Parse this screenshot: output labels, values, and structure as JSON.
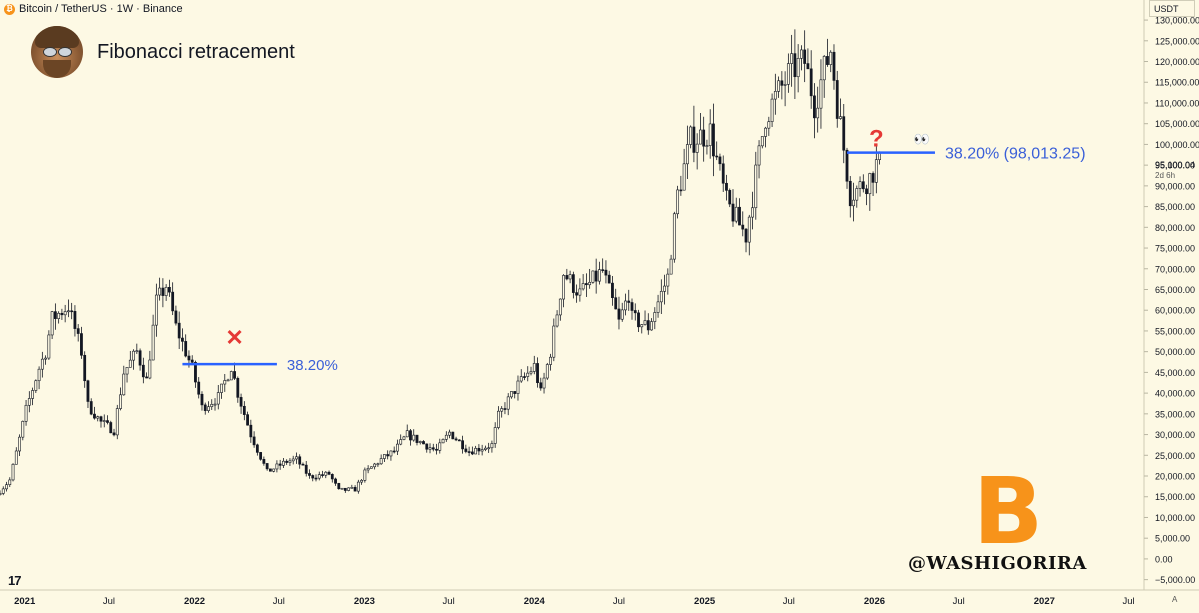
{
  "header": {
    "symbol": "Bitcoin / TetherUS · 1W · Binance",
    "btc_glyph": "₿",
    "currency": "USDT",
    "title": "Fibonacci retracement",
    "avatar": "bearded-man-sunglasses-avatar"
  },
  "annotations": {
    "fib_2022_label": "38.20%",
    "fib_2026_label": "38.20% (98,013.25)",
    "cross_mark": "✕",
    "question_mark": "?",
    "eyes": "👀",
    "price_tag": "95,100.04",
    "countdown": "2d 6h",
    "auto_scale": "A"
  },
  "branding": {
    "tradingview_logo": "17",
    "watermark": "@WASHIGORIRA",
    "bitcoin_logo": "B"
  },
  "colors": {
    "background": "#fdf9e4",
    "candles": "#131722",
    "fib_line": "#2962ff",
    "fib_text": "#3a5fd8",
    "cross": "#e53935",
    "bitcoin_orange": "#f7931a"
  },
  "chart_data": {
    "type": "candlestick",
    "title": "",
    "interval": "1W",
    "x_range": [
      "2020-11-09",
      "2027-08-01"
    ],
    "y_range": [
      -7500,
      130500
    ],
    "y_ticks": [
      -5000,
      0,
      5000,
      10000,
      15000,
      20000,
      25000,
      30000,
      35000,
      40000,
      45000,
      50000,
      55000,
      60000,
      65000,
      70000,
      75000,
      80000,
      85000,
      90000,
      95000,
      100000,
      105000,
      110000,
      115000,
      120000,
      125000,
      130000
    ],
    "y_tick_labels": [
      "−5,000.00",
      "0.00",
      "5,000.00",
      "10,000.00",
      "15,000.00",
      "20,000.00",
      "25,000.00",
      "30,000.00",
      "35,000.00",
      "40,000.00",
      "45,000.00",
      "50,000.00",
      "55,000.00",
      "60,000.00",
      "65,000.00",
      "70,000.00",
      "75,000.00",
      "80,000.00",
      "85,000.00",
      "90,000.00",
      "95,000.00",
      "100,000.00",
      "105,000.00",
      "110,000.00",
      "115,000.00",
      "120,000.00",
      "125,000.00",
      "130,000.00"
    ],
    "x_ticks": [
      {
        "date": "2021-01-01",
        "label": "2021",
        "bold": true
      },
      {
        "date": "2021-07-01",
        "label": "Jul",
        "bold": false
      },
      {
        "date": "2022-01-01",
        "label": "2022",
        "bold": true
      },
      {
        "date": "2022-07-01",
        "label": "Jul",
        "bold": false
      },
      {
        "date": "2023-01-01",
        "label": "2023",
        "bold": true
      },
      {
        "date": "2023-07-01",
        "label": "Jul",
        "bold": false
      },
      {
        "date": "2024-01-01",
        "label": "2024",
        "bold": true
      },
      {
        "date": "2024-07-01",
        "label": "Jul",
        "bold": false
      },
      {
        "date": "2025-01-01",
        "label": "2025",
        "bold": true
      },
      {
        "date": "2025-07-01",
        "label": "Jul",
        "bold": false
      },
      {
        "date": "2026-01-01",
        "label": "2026",
        "bold": true
      },
      {
        "date": "2026-07-01",
        "label": "Jul",
        "bold": false
      },
      {
        "date": "2027-01-01",
        "label": "2027",
        "bold": true
      },
      {
        "date": "2027-07-01",
        "label": "Jul",
        "bold": false
      }
    ],
    "price_anchors": [
      [
        "2020-11-09",
        15500
      ],
      [
        "2020-12-07",
        19000
      ],
      [
        "2020-12-28",
        29000
      ],
      [
        "2021-01-11",
        36000
      ],
      [
        "2021-02-08",
        46000
      ],
      [
        "2021-02-22",
        50000
      ],
      [
        "2021-03-08",
        58000
      ],
      [
        "2021-04-12",
        61000
      ],
      [
        "2021-05-10",
        50000
      ],
      [
        "2021-05-24",
        37000
      ],
      [
        "2021-06-21",
        33000
      ],
      [
        "2021-07-19",
        31000
      ],
      [
        "2021-08-09",
        45000
      ],
      [
        "2021-09-06",
        50000
      ],
      [
        "2021-09-27",
        43000
      ],
      [
        "2021-10-18",
        62000
      ],
      [
        "2021-11-08",
        66000
      ],
      [
        "2021-11-29",
        56000
      ],
      [
        "2022-01-03",
        46000
      ],
      [
        "2022-01-24",
        36500
      ],
      [
        "2022-02-28",
        39000
      ],
      [
        "2022-03-28",
        46500
      ],
      [
        "2022-04-11",
        40000
      ],
      [
        "2022-05-09",
        30000
      ],
      [
        "2022-06-13",
        21000
      ],
      [
        "2022-07-25",
        23500
      ],
      [
        "2022-08-15",
        24000
      ],
      [
        "2022-09-12",
        19800
      ],
      [
        "2022-10-24",
        20500
      ],
      [
        "2022-11-14",
        16500
      ],
      [
        "2022-12-19",
        16800
      ],
      [
        "2023-01-09",
        20800
      ],
      [
        "2023-02-13",
        24000
      ],
      [
        "2023-03-13",
        26000
      ],
      [
        "2023-04-10",
        30000
      ],
      [
        "2023-06-12",
        26000
      ],
      [
        "2023-07-10",
        30500
      ],
      [
        "2023-08-21",
        26000
      ],
      [
        "2023-10-09",
        27500
      ],
      [
        "2023-10-23",
        34500
      ],
      [
        "2023-12-04",
        42000
      ],
      [
        "2024-01-08",
        46500
      ],
      [
        "2024-01-22",
        40000
      ],
      [
        "2024-02-12",
        50000
      ],
      [
        "2024-03-11",
        69000
      ],
      [
        "2024-04-15",
        64000
      ],
      [
        "2024-06-03",
        69500
      ],
      [
        "2024-07-08",
        57000
      ],
      [
        "2024-07-29",
        64000
      ],
      [
        "2024-08-05",
        58000
      ],
      [
        "2024-09-09",
        56000
      ],
      [
        "2024-10-21",
        68000
      ],
      [
        "2024-11-11",
        88000
      ],
      [
        "2024-12-09",
        101000
      ],
      [
        "2025-01-20",
        103000
      ],
      [
        "2025-02-24",
        86000
      ],
      [
        "2025-04-07",
        78000
      ],
      [
        "2025-05-19",
        107000
      ],
      [
        "2025-07-14",
        118000
      ],
      [
        "2025-08-11",
        120000
      ],
      [
        "2025-09-01",
        110000
      ],
      [
        "2025-10-06",
        123000
      ],
      [
        "2025-10-20",
        110000
      ],
      [
        "2025-11-17",
        88000
      ],
      [
        "2025-12-01",
        89000
      ],
      [
        "2025-12-29",
        92000
      ],
      [
        "2026-01-12",
        95100
      ]
    ],
    "fib_levels": [
      {
        "label": "38.20%",
        "value": 47000,
        "from": "2021-12-06",
        "to": "2022-06-27"
      },
      {
        "label": "38.20% (98,013.25)",
        "value": 98013.25,
        "from": "2025-11-03",
        "to": "2026-05-11"
      }
    ],
    "last_price": 95100.04
  }
}
